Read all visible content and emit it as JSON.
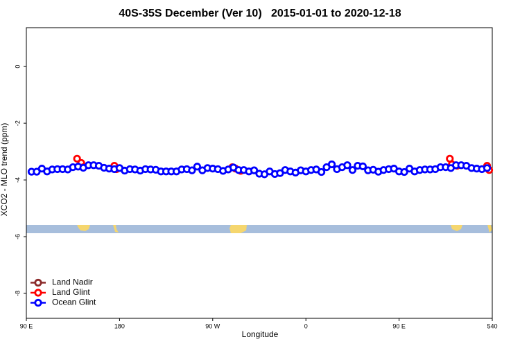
{
  "chart_data": {
    "type": "line",
    "title": "40S-35S December (Ver 10)   2015-01-01 to 2020-12-18",
    "xlabel": "Longitude",
    "ylabel": "XCO2 - MLO trend (ppm)",
    "xlim": [
      90,
      540
    ],
    "ylim": [
      -8.88,
      1.37
    ],
    "xticks": [
      {
        "value": 90,
        "label": "90 E"
      },
      180,
      {
        "value": 270,
        "label": "90 W"
      },
      {
        "value": 360,
        "label": "0"
      },
      {
        "value": 450,
        "label": "90 E"
      },
      540
    ],
    "yticks": [
      0,
      -2,
      -4,
      -6,
      -8
    ],
    "legend": "bottomleft",
    "series": [
      {
        "name": "Land Nadir",
        "color": "#8b2a2a",
        "x": [],
        "values": []
      },
      {
        "name": "Land Glint",
        "color": "#ff0000",
        "x": [
          139,
          143,
          145,
          null,
          175,
          177,
          null,
          289,
          292,
          297,
          null,
          499,
          501,
          506,
          null,
          535,
          537
        ],
        "values": [
          -3.25,
          -3.4,
          -3.55,
          null,
          -3.5,
          -3.62,
          null,
          -3.55,
          -3.6,
          -3.68,
          null,
          -3.25,
          -3.45,
          -3.5,
          null,
          -3.5,
          -3.65
        ]
      },
      {
        "name": "Ocean Glint",
        "color": "#0000ff",
        "x": [
          95,
          100,
          105,
          110,
          115,
          120,
          125,
          130,
          135,
          140,
          145,
          150,
          155,
          160,
          165,
          170,
          175,
          180,
          185,
          190,
          195,
          200,
          205,
          210,
          215,
          220,
          225,
          230,
          235,
          240,
          245,
          250,
          255,
          260,
          265,
          270,
          275,
          280,
          285,
          290,
          295,
          300,
          305,
          310,
          315,
          320,
          325,
          330,
          335,
          340,
          345,
          350,
          355,
          360,
          365,
          370,
          375,
          380,
          385,
          390,
          395,
          400,
          405,
          410,
          415,
          420,
          425,
          430,
          435,
          440,
          445,
          450,
          455,
          460,
          465,
          470,
          475,
          480,
          485,
          490,
          495,
          500,
          505,
          510,
          515,
          520,
          525,
          530,
          535
        ],
        "values": [
          -3.71,
          -3.71,
          -3.6,
          -3.7,
          -3.63,
          -3.62,
          -3.62,
          -3.63,
          -3.55,
          -3.53,
          -3.57,
          -3.48,
          -3.48,
          -3.5,
          -3.57,
          -3.6,
          -3.62,
          -3.58,
          -3.67,
          -3.62,
          -3.63,
          -3.67,
          -3.62,
          -3.63,
          -3.64,
          -3.7,
          -3.7,
          -3.7,
          -3.7,
          -3.63,
          -3.62,
          -3.66,
          -3.53,
          -3.66,
          -3.58,
          -3.6,
          -3.62,
          -3.68,
          -3.63,
          -3.56,
          -3.65,
          -3.65,
          -3.7,
          -3.66,
          -3.78,
          -3.8,
          -3.7,
          -3.79,
          -3.76,
          -3.65,
          -3.7,
          -3.74,
          -3.66,
          -3.7,
          -3.65,
          -3.63,
          -3.72,
          -3.55,
          -3.45,
          -3.62,
          -3.55,
          -3.48,
          -3.65,
          -3.5,
          -3.52,
          -3.66,
          -3.64,
          -3.71,
          -3.65,
          -3.62,
          -3.6,
          -3.7,
          -3.72,
          -3.6,
          -3.7,
          -3.65,
          -3.63,
          -3.63,
          -3.62,
          -3.55,
          -3.55,
          -3.58,
          -3.48,
          -3.48,
          -3.5,
          -3.58,
          -3.6,
          -3.62,
          -3.58
        ]
      }
    ]
  }
}
